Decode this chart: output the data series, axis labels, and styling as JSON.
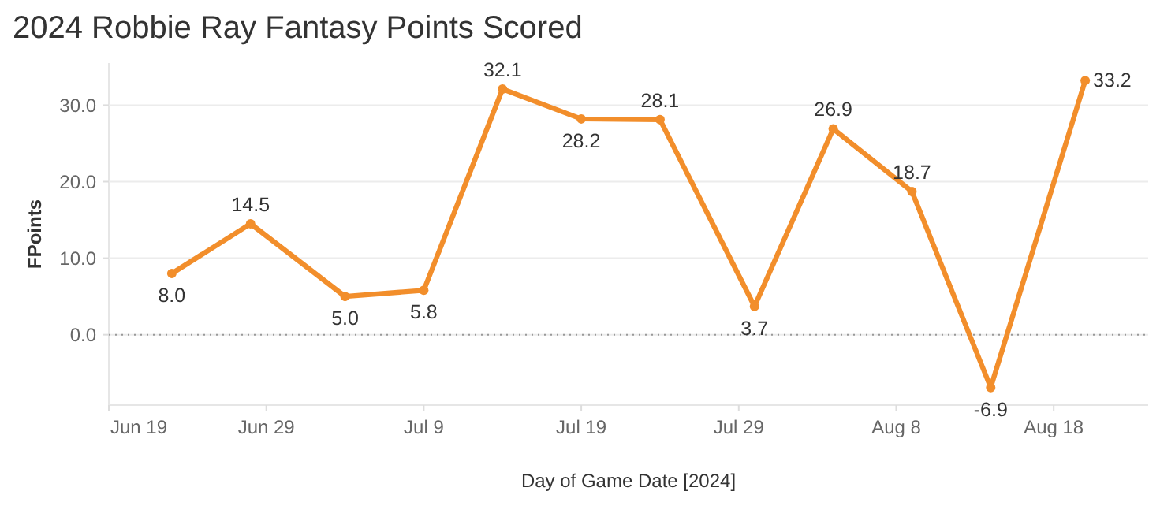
{
  "chart_data": {
    "type": "line",
    "title": "2024 Robbie Ray Fantasy Points Scored",
    "xlabel": "Day of Game Date [2024]",
    "ylabel": "FPoints",
    "x": [
      "2024-06-23",
      "2024-06-28",
      "2024-07-04",
      "2024-07-09",
      "2024-07-14",
      "2024-07-19",
      "2024-07-24",
      "2024-07-30",
      "2024-08-04",
      "2024-08-09",
      "2024-08-14",
      "2024-08-20"
    ],
    "series": [
      {
        "color": "#f28e2b",
        "values": [
          8.0,
          14.5,
          5.0,
          5.8,
          32.1,
          28.2,
          28.1,
          3.7,
          26.9,
          18.7,
          -6.9,
          33.2
        ],
        "value_labels": [
          "8.0",
          "14.5",
          "5.0",
          "5.8",
          "32.1",
          "28.2",
          "28.1",
          "3.7",
          "26.9",
          "18.7",
          "-6.9",
          "33.2"
        ]
      }
    ],
    "xlim": [
      "2024-06-19",
      "2024-08-24"
    ],
    "xticks": [
      {
        "value": "2024-06-19",
        "label": "Jun 19"
      },
      {
        "value": "2024-06-29",
        "label": "Jun 29"
      },
      {
        "value": "2024-07-09",
        "label": "Jul 9"
      },
      {
        "value": "2024-07-19",
        "label": "Jul 19"
      },
      {
        "value": "2024-07-29",
        "label": "Jul 29"
      },
      {
        "value": "2024-08-08",
        "label": "Aug 8"
      },
      {
        "value": "2024-08-18",
        "label": "Aug 18"
      }
    ],
    "ylim": [
      -9.2,
      35.5
    ],
    "yticks": [
      {
        "value": 0,
        "label": "0.0"
      },
      {
        "value": 10,
        "label": "10.0"
      },
      {
        "value": 20,
        "label": "20.0"
      },
      {
        "value": 30,
        "label": "30.0"
      }
    ],
    "ref_lines": [
      {
        "axis": "y",
        "value": 0,
        "color": "#999999",
        "line_style": "dotted"
      }
    ],
    "grid": "y",
    "marker": "circle",
    "line_style": "solid"
  }
}
